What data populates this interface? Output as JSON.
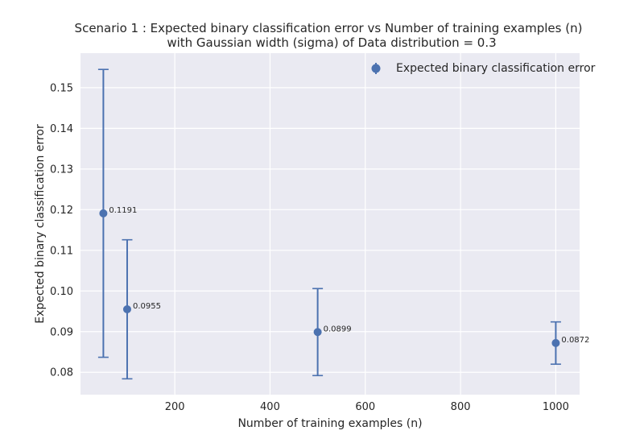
{
  "chart_data": {
    "type": "errorbar",
    "title": "Scenario 1 : Expected binary classification error vs Number of training examples (n)",
    "subtitle": "with Gaussian width (sigma) of Data distribution = 0.3",
    "xlabel": "Number of training examples (n)",
    "ylabel": "Expected binary classification error",
    "xlim": [
      2,
      1050
    ],
    "ylim": [
      0.0745,
      0.1585
    ],
    "xticks": [
      200,
      400,
      600,
      800,
      1000
    ],
    "yticks": [
      0.08,
      0.09,
      0.1,
      0.11,
      0.12,
      0.13,
      0.14,
      0.15
    ],
    "ytick_labels": [
      "0.08",
      "0.09",
      "0.10",
      "0.11",
      "0.12",
      "0.13",
      "0.14",
      "0.15"
    ],
    "grid": true,
    "legend_position": "top-right",
    "series": [
      {
        "name": "Expected binary classification error",
        "color": "#4c72b0",
        "points": [
          {
            "x": 50,
            "y": 0.1191,
            "yerr_low": 0.0837,
            "yerr_high": 0.1545,
            "label": "0.1191"
          },
          {
            "x": 100,
            "y": 0.0955,
            "yerr_low": 0.0784,
            "yerr_high": 0.1126,
            "label": "0.0955"
          },
          {
            "x": 500,
            "y": 0.0899,
            "yerr_low": 0.0792,
            "yerr_high": 0.1006,
            "label": "0.0899"
          },
          {
            "x": 1000,
            "y": 0.0872,
            "yerr_low": 0.082,
            "yerr_high": 0.0924,
            "label": "0.0872"
          }
        ]
      }
    ],
    "colors": {
      "plot_background": "#eaeaf2",
      "grid": "#ffffff",
      "series": "#4c72b0",
      "text": "#262626"
    }
  }
}
